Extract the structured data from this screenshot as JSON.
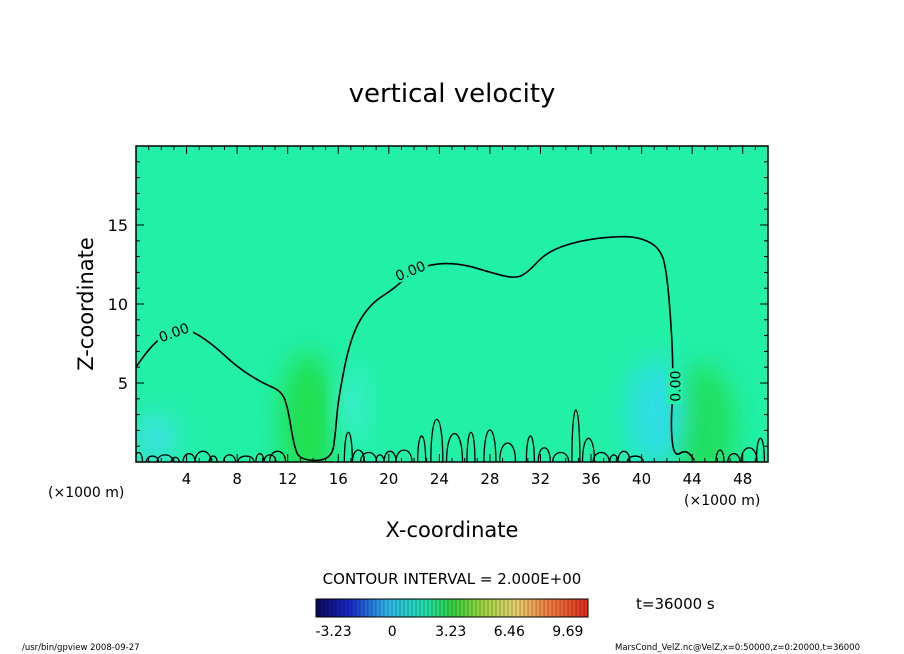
{
  "chart_data": {
    "type": "heatmap",
    "title": "vertical velocity",
    "xlabel": "X-coordinate",
    "ylabel": "Z-coordinate",
    "x_unit_left": "(×1000 m)",
    "x_unit_right": "(×1000 m)",
    "xlim": [
      0,
      50
    ],
    "ylim": [
      0,
      20
    ],
    "x_ticks": [
      4,
      8,
      12,
      16,
      20,
      24,
      28,
      32,
      36,
      40,
      44,
      48
    ],
    "y_ticks": [
      5,
      10,
      15
    ],
    "contour_interval_label": "CONTOUR INTERVAL = 2.000E+00",
    "contour_labels": [
      {
        "text": "0.00",
        "x": 3.0,
        "y": 8.2,
        "angle": -20
      },
      {
        "text": "0.00",
        "x": 21.7,
        "y": 12.1,
        "angle": -22
      },
      {
        "text": "0.00",
        "x": 42.7,
        "y": 4.8,
        "angle": -90
      }
    ],
    "time_label": "t=36000 s",
    "colorbar": {
      "ticks": [
        "-3.23",
        "0",
        "3.23",
        "6.46",
        "9.69"
      ],
      "min": -4.2,
      "max": 10.8,
      "tick_values": [
        -3.23,
        0,
        3.23,
        6.46,
        9.69
      ]
    },
    "features": [
      {
        "kind": "updraft",
        "x": 13.6,
        "y": 2.5,
        "rx": 2.2,
        "ry": 4.5,
        "color": "#22dd44"
      },
      {
        "kind": "updraft",
        "x": 44.8,
        "y": 2.2,
        "rx": 2.6,
        "ry": 4.0,
        "color": "#22dd55"
      },
      {
        "kind": "downdraft",
        "x": 41.2,
        "y": 3.0,
        "rx": 2.2,
        "ry": 3.5,
        "color": "#33ddee"
      },
      {
        "kind": "downdraft",
        "x": 1.5,
        "y": 1.5,
        "rx": 1.6,
        "ry": 1.5,
        "color": "#44ddee"
      },
      {
        "kind": "downdraft",
        "x": 17.0,
        "y": 3.5,
        "rx": 1.0,
        "ry": 2.5,
        "color": "#44eedd"
      }
    ],
    "zero_contour_main": [
      [
        0,
        6.0
      ],
      [
        1,
        7.2
      ],
      [
        2.5,
        8.2
      ],
      [
        4,
        8.5
      ],
      [
        6,
        7.5
      ],
      [
        8,
        6.0
      ],
      [
        10,
        5.0
      ],
      [
        11.5,
        4.5
      ],
      [
        12,
        3.5
      ],
      [
        12.5,
        1.0
      ],
      [
        13,
        0.1
      ],
      [
        15.5,
        0.1
      ],
      [
        15.8,
        2.0
      ],
      [
        16,
        4.0
      ],
      [
        17,
        8.0
      ],
      [
        18.5,
        10.0
      ],
      [
        20.5,
        11.0
      ],
      [
        22,
        12.2
      ],
      [
        24,
        12.6
      ],
      [
        26,
        12.5
      ],
      [
        28,
        12.0
      ],
      [
        30,
        11.6
      ],
      [
        31,
        12.0
      ],
      [
        32.5,
        13.3
      ],
      [
        35,
        14.0
      ],
      [
        38,
        14.3
      ],
      [
        40,
        14.2
      ],
      [
        41.5,
        13.5
      ],
      [
        42,
        12.0
      ],
      [
        42.4,
        8.0
      ],
      [
        42.5,
        5.0
      ],
      [
        42.3,
        2.0
      ],
      [
        42.6,
        0.3
      ],
      [
        43.5,
        0.8
      ],
      [
        44.2,
        0.1
      ]
    ]
  },
  "footer": {
    "left": "/usr/bin/gpview  2008-09-27",
    "right": "MarsCond_VelZ.nc@VelZ,x=0:50000,z=0:20000,t=36000"
  }
}
